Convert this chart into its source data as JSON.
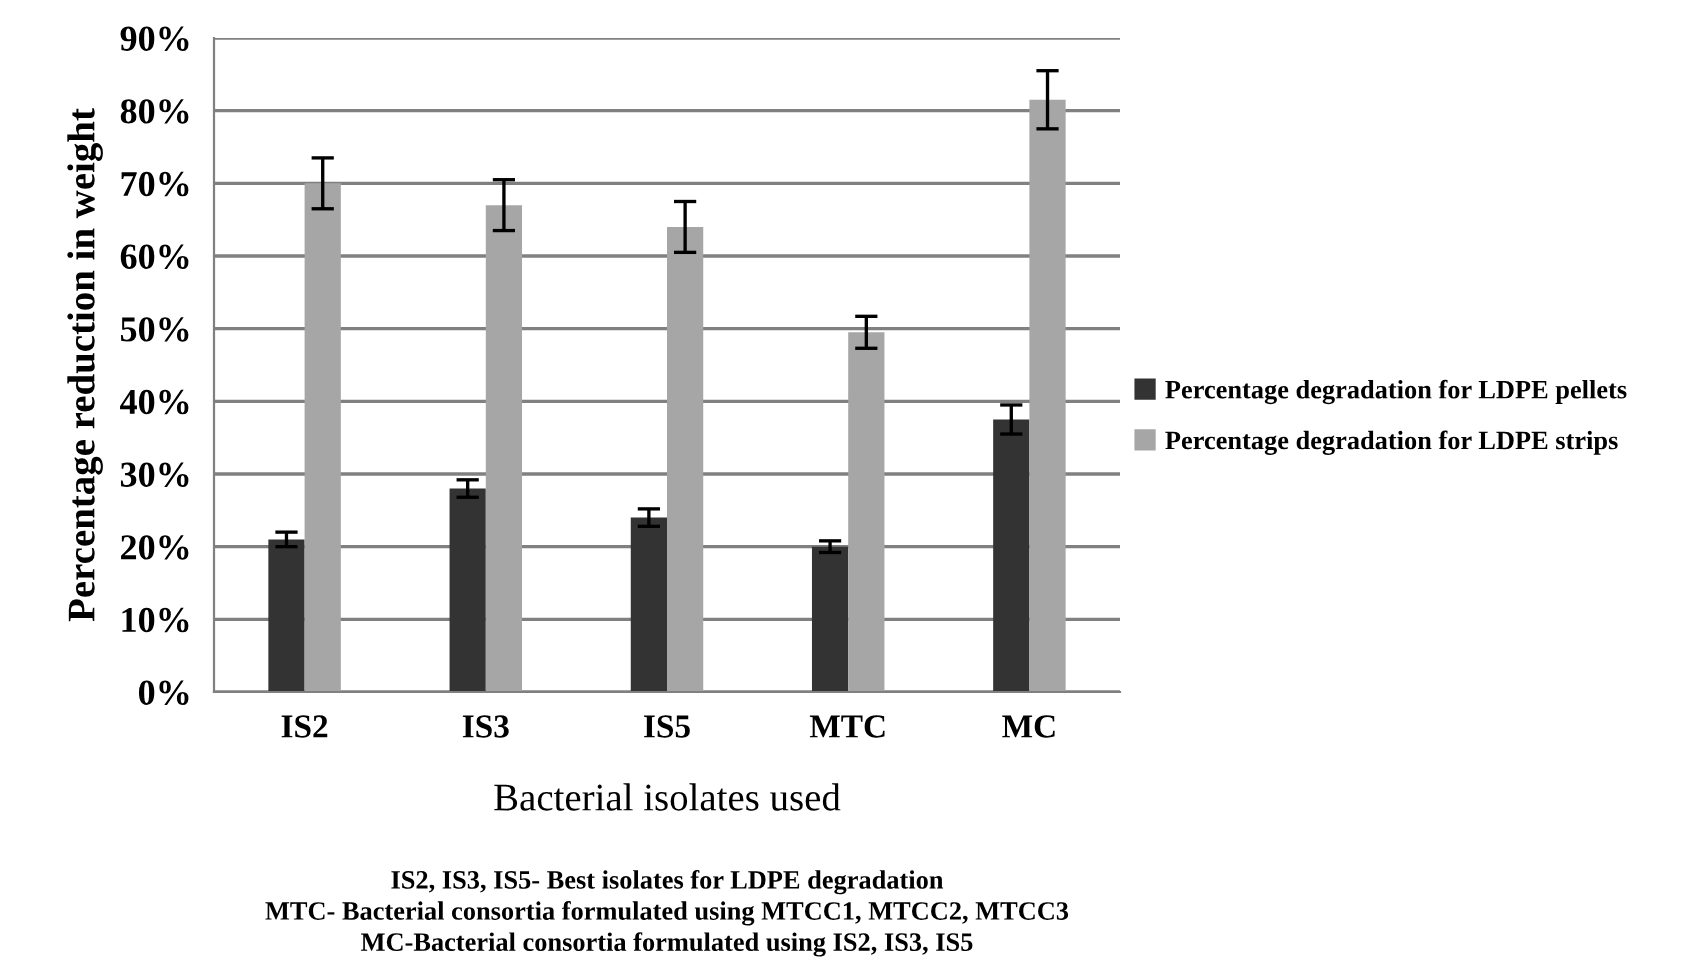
{
  "chart_data": {
    "type": "bar",
    "xlabel": "Bacterial isolates used",
    "ylabel": "Percentage reduction in weight",
    "categories": [
      "IS2",
      "IS3",
      "IS5",
      "MTC",
      "MC"
    ],
    "series": [
      {
        "name": "Percentage degradation for LDPE pellets",
        "color": "#333333",
        "values": [
          21,
          28,
          24,
          20,
          37.5
        ],
        "errors": [
          1,
          1.2,
          1.2,
          0.8,
          2
        ]
      },
      {
        "name": "Percentage degradation for LDPE strips",
        "color": "#a6a6a6",
        "values": [
          70,
          67,
          64,
          49.5,
          81.5
        ],
        "errors": [
          3.5,
          3.5,
          3.5,
          2.2,
          4
        ]
      }
    ],
    "ylim": [
      0,
      90
    ],
    "yticks": [
      {
        "value": 0,
        "label": "0%"
      },
      {
        "value": 10,
        "label": "10%"
      },
      {
        "value": 20,
        "label": "20%"
      },
      {
        "value": 30,
        "label": "30%"
      },
      {
        "value": 40,
        "label": "40%"
      },
      {
        "value": 50,
        "label": "50%"
      },
      {
        "value": 60,
        "label": "60%"
      },
      {
        "value": 70,
        "label": "70%"
      },
      {
        "value": 80,
        "label": "80%"
      },
      {
        "value": 90,
        "label": "90%"
      }
    ],
    "grid": "y",
    "legend": "right",
    "annotations": [
      "IS2, IS3, IS5- Best isolates for LDPE degradation",
      "MTC- Bacterial consortia formulated using MTCC1, MTCC2, MTCC3",
      "MC-Bacterial consortia formulated using IS2, IS3, IS5"
    ]
  }
}
